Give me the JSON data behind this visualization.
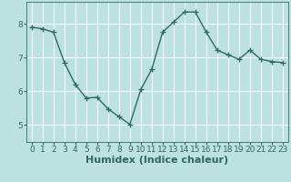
{
  "x": [
    0,
    1,
    2,
    3,
    4,
    5,
    6,
    7,
    8,
    9,
    10,
    11,
    12,
    13,
    14,
    15,
    16,
    17,
    18,
    19,
    20,
    21,
    22,
    23
  ],
  "y": [
    7.9,
    7.85,
    7.75,
    6.85,
    6.2,
    5.8,
    5.82,
    5.48,
    5.25,
    5.02,
    6.05,
    6.65,
    7.75,
    8.05,
    8.35,
    8.35,
    7.75,
    7.22,
    7.08,
    6.95,
    7.22,
    6.95,
    6.88,
    6.85
  ],
  "xlabel": "Humidex (Indice chaleur)",
  "ylim": [
    4.5,
    8.65
  ],
  "xlim": [
    -0.5,
    23.5
  ],
  "yticks": [
    5,
    6,
    7,
    8
  ],
  "xticks": [
    0,
    1,
    2,
    3,
    4,
    5,
    6,
    7,
    8,
    9,
    10,
    11,
    12,
    13,
    14,
    15,
    16,
    17,
    18,
    19,
    20,
    21,
    22,
    23
  ],
  "line_color": "#2e6b5e",
  "bg_color": "#bde0e0",
  "grid_color": "#ffffff",
  "marker": "+",
  "marker_size": 4,
  "line_width": 1.0,
  "xlabel_fontsize": 8,
  "tick_fontsize": 6.5,
  "axis_color": "#2e6b5e"
}
